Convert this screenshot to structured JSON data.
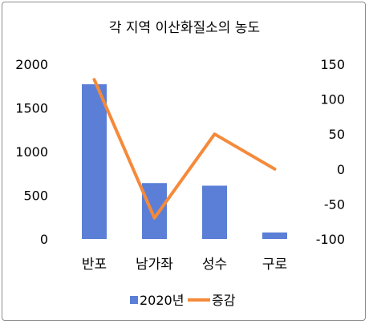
{
  "chart_data": {
    "type": "bar+line",
    "title": "각 지역 이산화질소의 농도",
    "categories": [
      "반포",
      "남가좌",
      "성수",
      "구로"
    ],
    "series": [
      {
        "name": "2020년",
        "type": "bar",
        "axis": "left",
        "color": "#5b7fd6",
        "values": [
          1770,
          640,
          610,
          75
        ]
      },
      {
        "name": "증감",
        "type": "line",
        "axis": "right",
        "color": "#f58a3b",
        "values": [
          128,
          -70,
          50,
          0
        ]
      }
    ],
    "y_left": {
      "min": 0,
      "max": 2000,
      "ticks": [
        0,
        500,
        1000,
        1500,
        2000
      ],
      "tick_labels": [
        "0",
        "500",
        "1000",
        "1500",
        "2000"
      ]
    },
    "y_right": {
      "min": -100,
      "max": 150,
      "ticks": [
        -100,
        -50,
        0,
        50,
        100,
        150
      ],
      "tick_labels": [
        "-100",
        "-50",
        "0",
        "50",
        "100",
        "150"
      ]
    },
    "grid": false,
    "legend_position": "bottom"
  }
}
